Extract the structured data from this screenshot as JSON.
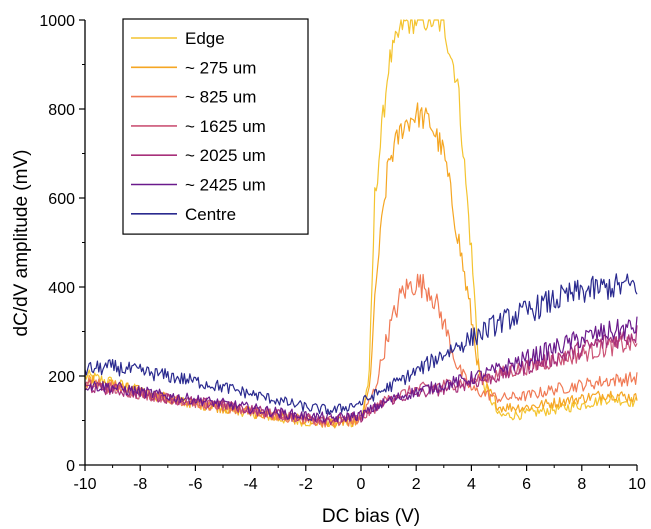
{
  "chart_data": {
    "type": "line",
    "xlabel": "DC bias (V)",
    "ylabel": "dC/dV amplitude (mV)",
    "xlim": [
      -10,
      10
    ],
    "ylim": [
      0,
      1000
    ],
    "xticks": [
      -10,
      -8,
      -6,
      -4,
      -2,
      0,
      2,
      4,
      6,
      8,
      10
    ],
    "yticks": [
      0,
      200,
      400,
      600,
      800,
      1000
    ],
    "legend_position": "top-left",
    "grid": false,
    "series": [
      {
        "name": "Edge",
        "color": "#f4c430",
        "x": [
          -10,
          -9,
          -8,
          -7,
          -6,
          -5,
          -4,
          -3,
          -2,
          -1,
          0,
          0.3,
          0.5,
          1,
          1.5,
          2,
          2.5,
          3,
          3.5,
          4,
          4.3,
          5,
          6,
          7,
          8,
          9,
          10
        ],
        "y": [
          200,
          185,
          165,
          150,
          138,
          128,
          118,
          105,
          98,
          92,
          100,
          200,
          600,
          900,
          990,
          1000,
          1000,
          990,
          860,
          480,
          200,
          110,
          115,
          125,
          135,
          150,
          140
        ]
      },
      {
        "name": "~ 275 um",
        "color": "#f5a623",
        "x": [
          -10,
          -9,
          -8,
          -7,
          -6,
          -5,
          -4,
          -3,
          -2,
          -1,
          0,
          0.3,
          0.6,
          1,
          1.5,
          2,
          2.5,
          3,
          3.5,
          4,
          4.3,
          5,
          6,
          7,
          8,
          9,
          10
        ],
        "y": [
          190,
          180,
          165,
          150,
          138,
          128,
          118,
          108,
          100,
          95,
          100,
          170,
          450,
          680,
          760,
          790,
          770,
          700,
          520,
          330,
          200,
          130,
          130,
          140,
          150,
          160,
          150
        ]
      },
      {
        "name": "~ 825 um",
        "color": "#f07a55",
        "x": [
          -10,
          -9,
          -8,
          -7,
          -6,
          -5,
          -4,
          -3,
          -2,
          -1,
          0,
          0.5,
          1,
          1.5,
          2,
          2.5,
          3,
          3.5,
          4,
          5,
          6,
          7,
          8,
          9,
          10
        ],
        "y": [
          185,
          175,
          162,
          150,
          140,
          130,
          120,
          110,
          102,
          95,
          100,
          170,
          300,
          390,
          410,
          395,
          320,
          220,
          170,
          150,
          155,
          170,
          180,
          190,
          195
        ]
      },
      {
        "name": "~ 1625 um",
        "color": "#cc5577",
        "x": [
          -10,
          -9,
          -8,
          -7,
          -6,
          -5,
          -4,
          -3,
          -2,
          -1,
          0,
          1,
          2,
          3,
          4,
          5,
          6,
          7,
          8,
          9,
          10
        ],
        "y": [
          180,
          172,
          160,
          150,
          140,
          132,
          122,
          112,
          105,
          100,
          105,
          150,
          170,
          180,
          190,
          205,
          220,
          235,
          250,
          265,
          275
        ]
      },
      {
        "name": "~ 2025 um",
        "color": "#a8307a",
        "x": [
          -10,
          -9,
          -8,
          -7,
          -6,
          -5,
          -4,
          -3,
          -2,
          -1,
          0,
          1,
          2,
          3,
          4,
          5,
          6,
          7,
          8,
          9,
          10
        ],
        "y": [
          175,
          170,
          160,
          150,
          142,
          135,
          125,
          115,
          108,
          102,
          108,
          145,
          160,
          170,
          185,
          200,
          220,
          240,
          260,
          280,
          295
        ]
      },
      {
        "name": "~ 2425 um",
        "color": "#6a1a8c",
        "x": [
          -10,
          -9,
          -8,
          -7,
          -6,
          -5,
          -4,
          -3,
          -2,
          -1,
          0,
          1,
          2,
          3,
          4,
          5,
          6,
          7,
          8,
          9,
          10
        ],
        "y": [
          180,
          175,
          165,
          155,
          147,
          138,
          128,
          118,
          110,
          105,
          112,
          145,
          165,
          180,
          195,
          215,
          240,
          262,
          285,
          300,
          310
        ]
      },
      {
        "name": "Centre",
        "color": "#2a2a8f",
        "x": [
          -10,
          -9,
          -8,
          -7,
          -6,
          -5,
          -4,
          -3,
          -2,
          -1,
          0,
          1,
          2,
          3,
          4,
          5,
          6,
          7,
          8,
          9,
          10
        ],
        "y": [
          215,
          220,
          210,
          200,
          188,
          175,
          160,
          145,
          130,
          122,
          140,
          175,
          210,
          250,
          285,
          320,
          345,
          370,
          390,
          400,
          405
        ]
      }
    ]
  }
}
